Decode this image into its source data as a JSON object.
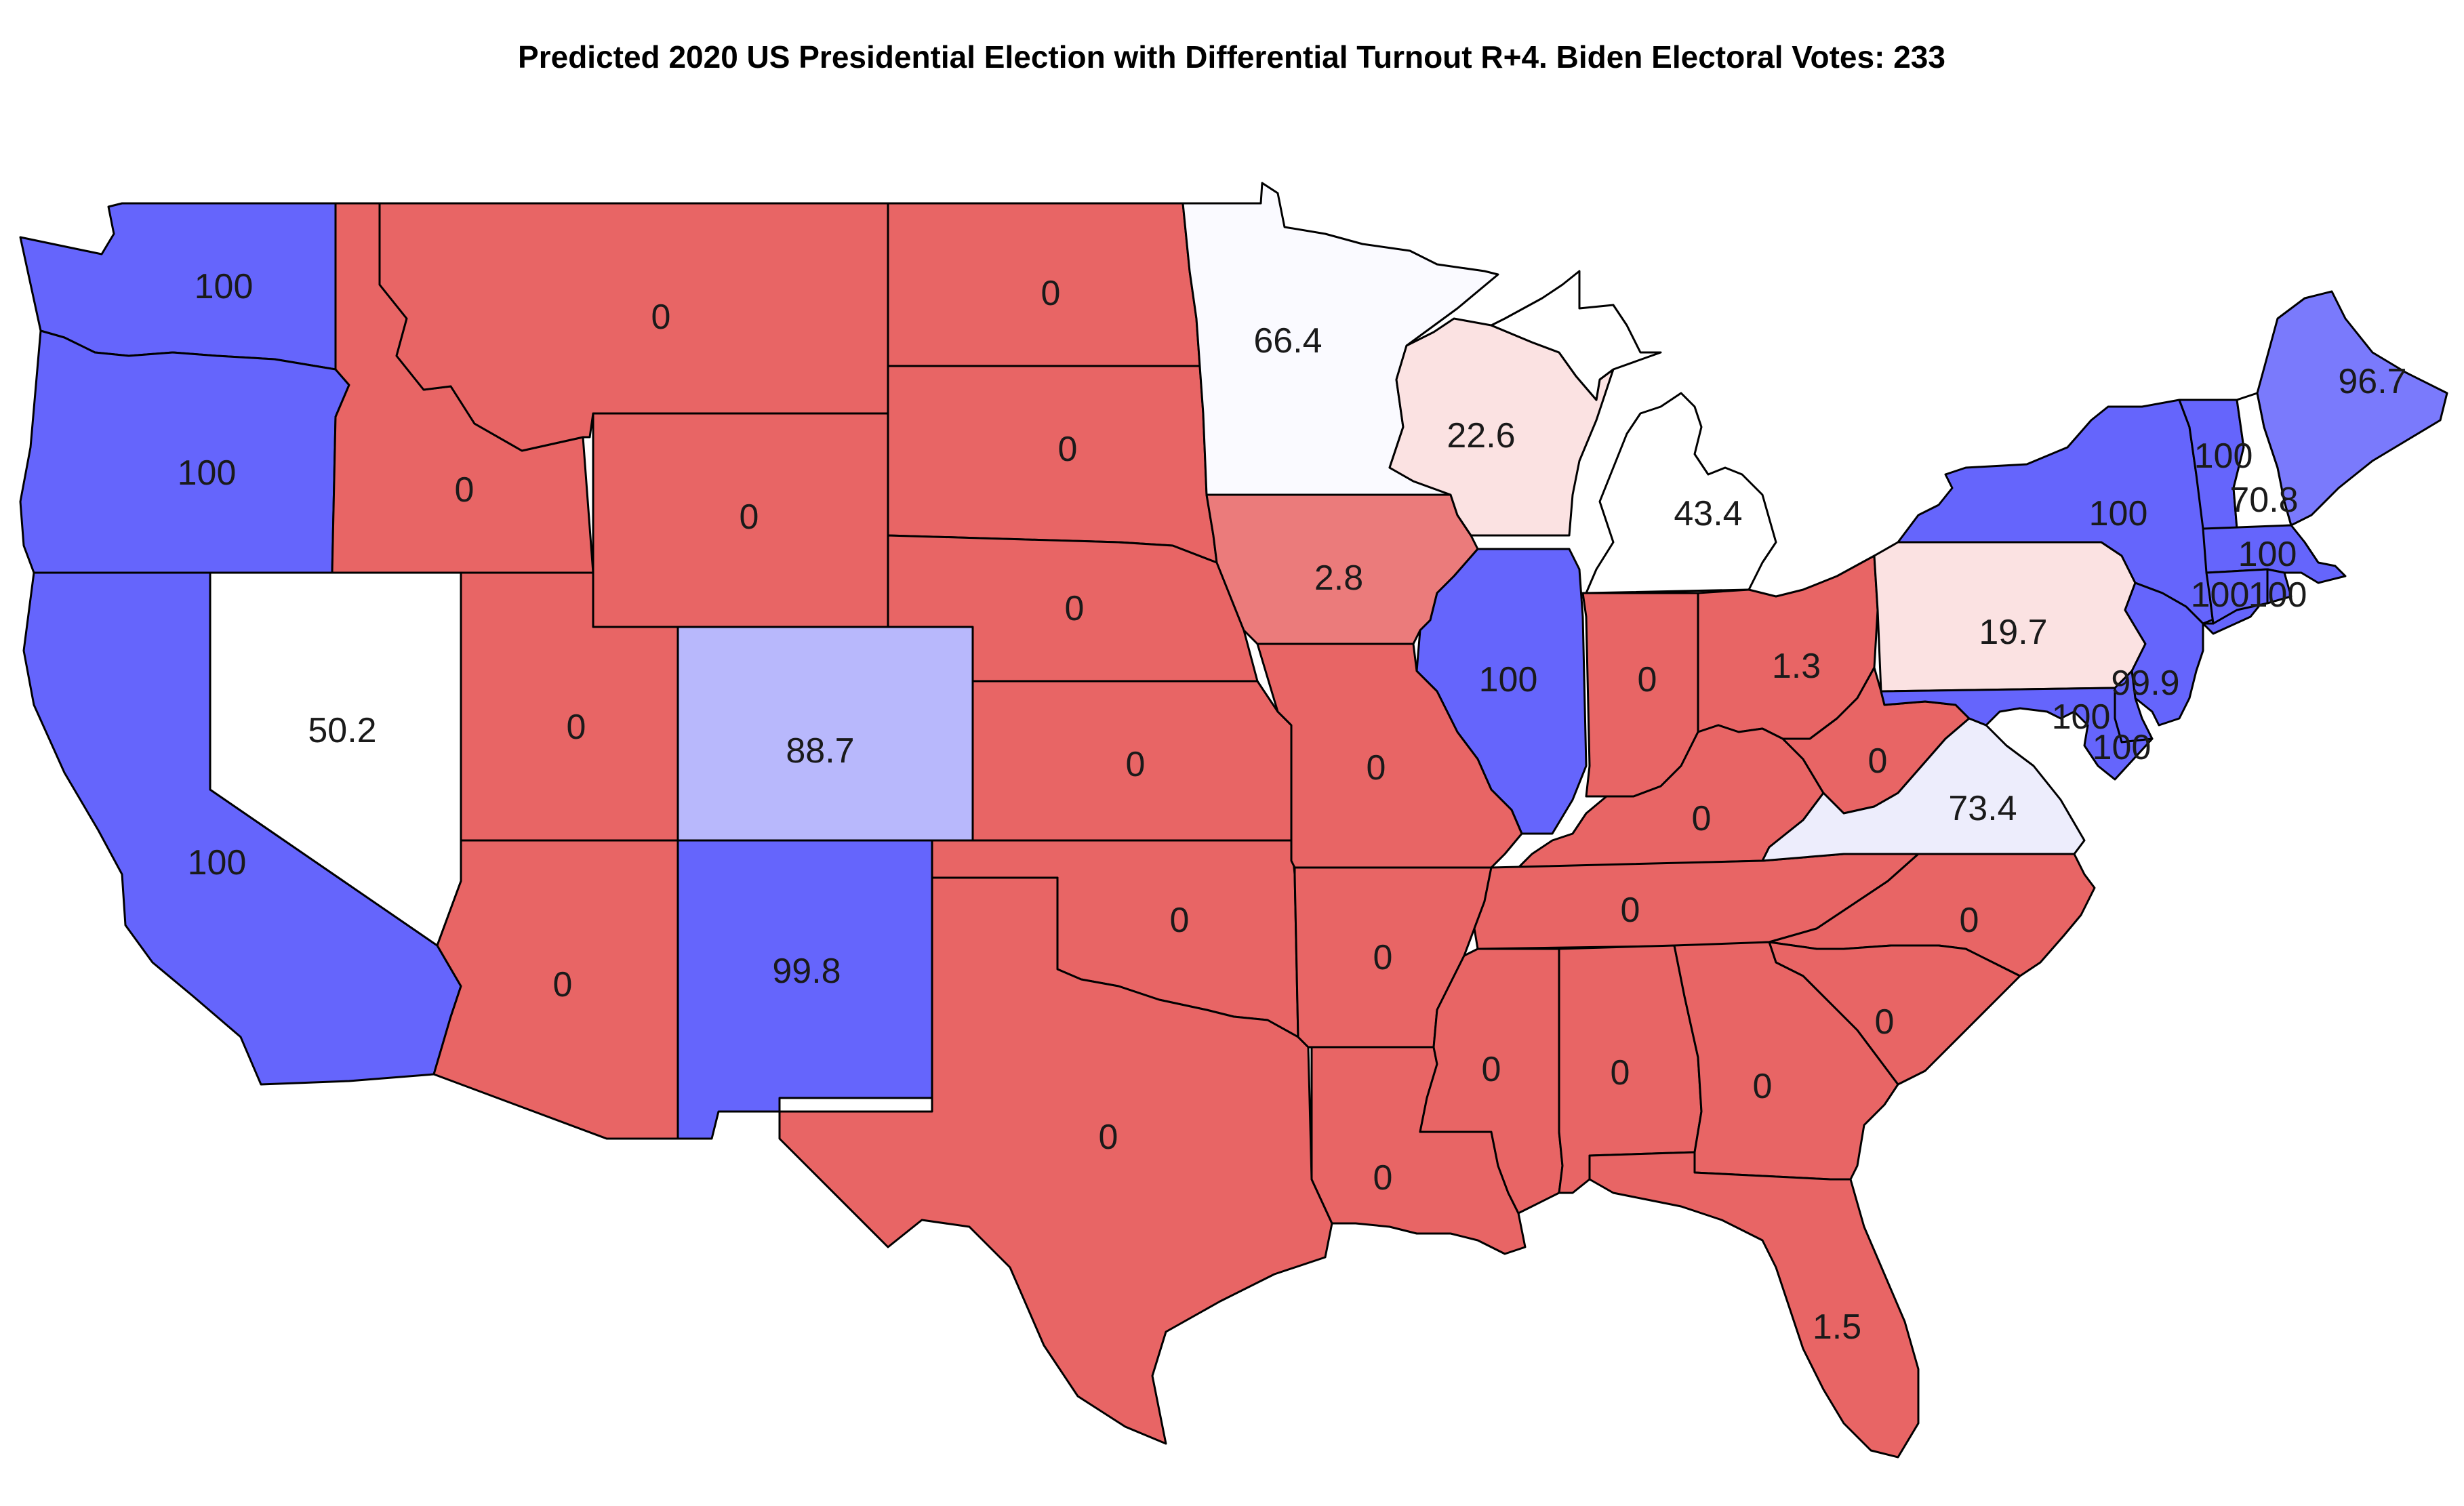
{
  "title": "Predicted 2020 US Presidential Election with Differential Turnout R+4. Biden Electoral Votes: 233",
  "colors": {
    "strong_dem": "#6565fc",
    "lean_dem_light": "#b8b8fc",
    "lean_dem_pale": "#7a7afc",
    "toss_up": "#ffffff",
    "lean_rep_pale": "#fbe2e2",
    "lean_rep": "#eb7b7b",
    "strong_rep": "#e86565",
    "outline": "#000000"
  },
  "states": [
    {
      "id": "WA",
      "value": "100",
      "fill": "#6565fc"
    },
    {
      "id": "OR",
      "value": "100",
      "fill": "#6565fc"
    },
    {
      "id": "CA",
      "value": "100",
      "fill": "#6565fc"
    },
    {
      "id": "NV",
      "value": "50.2",
      "fill": "#ffffff"
    },
    {
      "id": "ID",
      "value": "0",
      "fill": "#e86565"
    },
    {
      "id": "MT",
      "value": "0",
      "fill": "#e86565"
    },
    {
      "id": "WY",
      "value": "0",
      "fill": "#e86565"
    },
    {
      "id": "UT",
      "value": "0",
      "fill": "#e86565"
    },
    {
      "id": "AZ",
      "value": "0",
      "fill": "#e86565"
    },
    {
      "id": "CO",
      "value": "88.7",
      "fill": "#b8b8fc"
    },
    {
      "id": "NM",
      "value": "99.8",
      "fill": "#6565fc"
    },
    {
      "id": "ND",
      "value": "0",
      "fill": "#e86565"
    },
    {
      "id": "SD",
      "value": "0",
      "fill": "#e86565"
    },
    {
      "id": "NE",
      "value": "0",
      "fill": "#e86565"
    },
    {
      "id": "KS",
      "value": "0",
      "fill": "#e86565"
    },
    {
      "id": "OK",
      "value": "0",
      "fill": "#e86565"
    },
    {
      "id": "TX",
      "value": "0",
      "fill": "#e86565"
    },
    {
      "id": "MN",
      "value": "66.4",
      "fill": "#fafaff"
    },
    {
      "id": "IA",
      "value": "2.8",
      "fill": "#eb7b7b"
    },
    {
      "id": "MO",
      "value": "0",
      "fill": "#e86565"
    },
    {
      "id": "AR",
      "value": "0",
      "fill": "#e86565"
    },
    {
      "id": "LA",
      "value": "0",
      "fill": "#e86565"
    },
    {
      "id": "WI",
      "value": "22.6",
      "fill": "#fbe2e2"
    },
    {
      "id": "IL",
      "value": "100",
      "fill": "#6565fc"
    },
    {
      "id": "MI",
      "value": "43.4",
      "fill": "#ffffff"
    },
    {
      "id": "IN",
      "value": "0",
      "fill": "#e86565"
    },
    {
      "id": "OH",
      "value": "1.3",
      "fill": "#e86565"
    },
    {
      "id": "KY",
      "value": "0",
      "fill": "#e86565"
    },
    {
      "id": "TN",
      "value": "0",
      "fill": "#e86565"
    },
    {
      "id": "MS",
      "value": "0",
      "fill": "#e86565"
    },
    {
      "id": "AL",
      "value": "0",
      "fill": "#e86565"
    },
    {
      "id": "GA",
      "value": "0",
      "fill": "#e86565"
    },
    {
      "id": "FL",
      "value": "1.5",
      "fill": "#e86565"
    },
    {
      "id": "SC",
      "value": "0",
      "fill": "#e86565"
    },
    {
      "id": "NC",
      "value": "0",
      "fill": "#e86565"
    },
    {
      "id": "VA",
      "value": "73.4",
      "fill": "#ededfc"
    },
    {
      "id": "WV",
      "value": "0",
      "fill": "#e86565"
    },
    {
      "id": "PA",
      "value": "19.7",
      "fill": "#fbe2e2"
    },
    {
      "id": "NY",
      "value": "100",
      "fill": "#6565fc"
    },
    {
      "id": "NJ",
      "value": "99.9",
      "fill": "#6565fc"
    },
    {
      "id": "DE",
      "value": "100",
      "fill": "#6565fc"
    },
    {
      "id": "MD",
      "value": "100",
      "fill": "#6565fc"
    },
    {
      "id": "VT",
      "value": "100",
      "fill": "#6565fc"
    },
    {
      "id": "NH",
      "value": "70.8",
      "fill": "#ffffff"
    },
    {
      "id": "ME",
      "value": "96.7",
      "fill": "#7a7afc"
    },
    {
      "id": "MA",
      "value": "100",
      "fill": "#6565fc"
    },
    {
      "id": "CT",
      "value": "100",
      "fill": "#6565fc"
    },
    {
      "id": "RI",
      "value": "100",
      "fill": "#6565fc"
    }
  ]
}
